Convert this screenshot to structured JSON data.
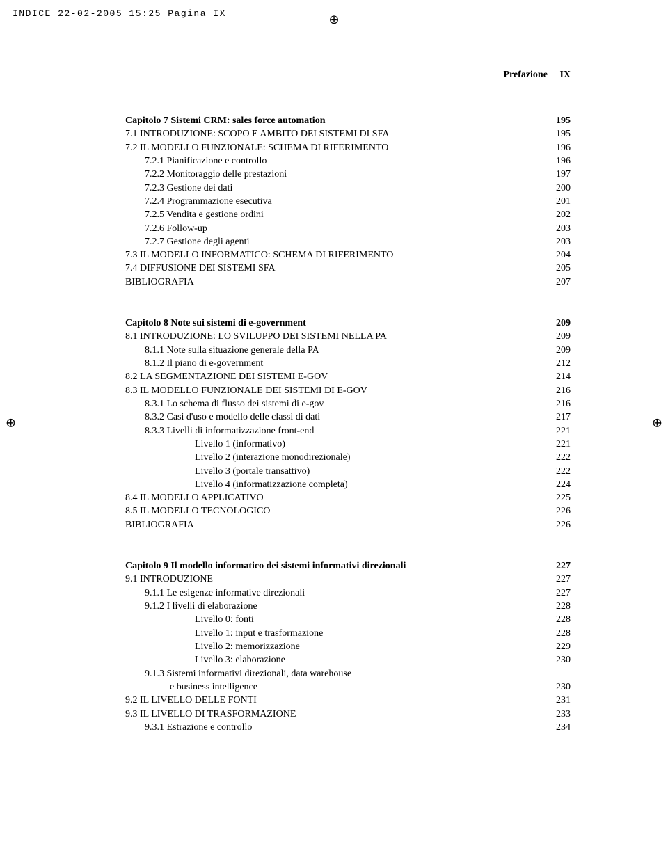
{
  "print_header": "INDICE  22-02-2005  15:25  Pagina IX",
  "reg_mark": "⊕",
  "running_head_title": "Prefazione",
  "running_head_page": "IX",
  "blocks": [
    {
      "rows": [
        {
          "label": "Capitolo 7 Sistemi CRM: sales force automation",
          "page": "195",
          "bold": true,
          "indent": 0
        },
        {
          "label": "7.1   INTRODUZIONE: SCOPO E AMBITO DEI SISTEMI DI SFA",
          "page": "195",
          "indent": 0
        },
        {
          "label": "7.2   IL MODELLO FUNZIONALE: SCHEMA DI RIFERIMENTO",
          "page": "196",
          "indent": 0
        },
        {
          "label": "7.2.1  Pianificazione e controllo",
          "page": "196",
          "indent": 1
        },
        {
          "label": "7.2.2  Monitoraggio delle prestazioni",
          "page": "197",
          "indent": 1
        },
        {
          "label": "7.2.3  Gestione dei dati",
          "page": "200",
          "indent": 1
        },
        {
          "label": "7.2.4  Programmazione esecutiva",
          "page": "201",
          "indent": 1
        },
        {
          "label": "7.2.5  Vendita e gestione ordini",
          "page": "202",
          "indent": 1
        },
        {
          "label": "7.2.6  Follow-up",
          "page": "203",
          "indent": 1
        },
        {
          "label": "7.2.7  Gestione degli agenti",
          "page": "203",
          "indent": 1
        },
        {
          "label": "7.3   IL MODELLO INFORMATICO: SCHEMA DI RIFERIMENTO",
          "page": "204",
          "indent": 0
        },
        {
          "label": "7.4   DIFFUSIONE DEI SISTEMI SFA",
          "page": "205",
          "indent": 0
        },
        {
          "label": "BIBLIOGRAFIA",
          "page": "207",
          "indent": 0
        }
      ]
    },
    {
      "rows": [
        {
          "label": "Capitolo 8 Note sui sistemi  di e-government",
          "page": "209",
          "bold": true,
          "indent": 0
        },
        {
          "label": "8.1   INTRODUZIONE: LO SVILUPPO DEI SISTEMI NELLA PA",
          "page": "209",
          "indent": 0
        },
        {
          "label": "8.1.1  Note sulla situazione generale della PA",
          "page": "209",
          "indent": 1
        },
        {
          "label": "8.1.2  Il piano di e-government",
          "page": "212",
          "indent": 1
        },
        {
          "label": "8.2   LA SEGMENTAZIONE DEI SISTEMI E-GOV",
          "page": "214",
          "indent": 0
        },
        {
          "label": "8.3   IL MODELLO FUNZIONALE DEI SISTEMI DI E-GOV",
          "page": "216",
          "indent": 0
        },
        {
          "label": "8.3.1  Lo schema di flusso dei sistemi di e-gov",
          "page": "216",
          "indent": 1
        },
        {
          "label": "8.3.2  Casi d'uso e modello delle classi di dati",
          "page": "217",
          "indent": 1
        },
        {
          "label": "8.3.3  Livelli di informatizzazione front-end",
          "page": "221",
          "indent": 1
        },
        {
          "label": "Livello 1 (informativo)",
          "page": "221",
          "indent": 3
        },
        {
          "label": "Livello 2 (interazione monodirezionale)",
          "page": "222",
          "indent": 3
        },
        {
          "label": "Livello 3 (portale transattivo)",
          "page": "222",
          "indent": 3
        },
        {
          "label": "Livello 4 (informatizzazione completa)",
          "page": "224",
          "indent": 3
        },
        {
          "label": "8.4   IL MODELLO APPLICATIVO",
          "page": "225",
          "indent": 0
        },
        {
          "label": "8.5   IL MODELLO TECNOLOGICO",
          "page": "226",
          "indent": 0
        },
        {
          "label": "BIBLIOGRAFIA",
          "page": "226",
          "indent": 0
        }
      ]
    },
    {
      "rows": [
        {
          "label": "Capitolo 9 Il modello  informatico dei sistemi informativi direzionali",
          "page": "227",
          "bold": true,
          "indent": 0
        },
        {
          "label": "9.1   INTRODUZIONE",
          "page": "227",
          "indent": 0
        },
        {
          "label": "9.1.1 Le esigenze informative direzionali",
          "page": "227",
          "indent": 1
        },
        {
          "label": "9.1.2 I livelli di elaborazione",
          "page": "228",
          "indent": 1
        },
        {
          "label": "Livello 0: fonti",
          "page": "228",
          "indent": 3
        },
        {
          "label": "Livello 1: input e trasformazione",
          "page": "228",
          "indent": 3
        },
        {
          "label": "Livello 2: memorizzazione",
          "page": "229",
          "indent": 3
        },
        {
          "label": "Livello 3: elaborazione",
          "page": "230",
          "indent": 3
        },
        {
          "label": "9.1.3  Sistemi informativi direzionali, data warehouse",
          "page": "",
          "indent": 1
        },
        {
          "label": "e business intelligence",
          "page": "230",
          "indent": 2
        },
        {
          "label": "9.2   IL LIVELLO DELLE FONTI",
          "page": "231",
          "indent": 0
        },
        {
          "label": "9.3   IL LIVELLO DI TRASFORMAZIONE",
          "page": "233",
          "indent": 0
        },
        {
          "label": "9.3.1  Estrazione e controllo",
          "page": "234",
          "indent": 1
        }
      ]
    }
  ]
}
